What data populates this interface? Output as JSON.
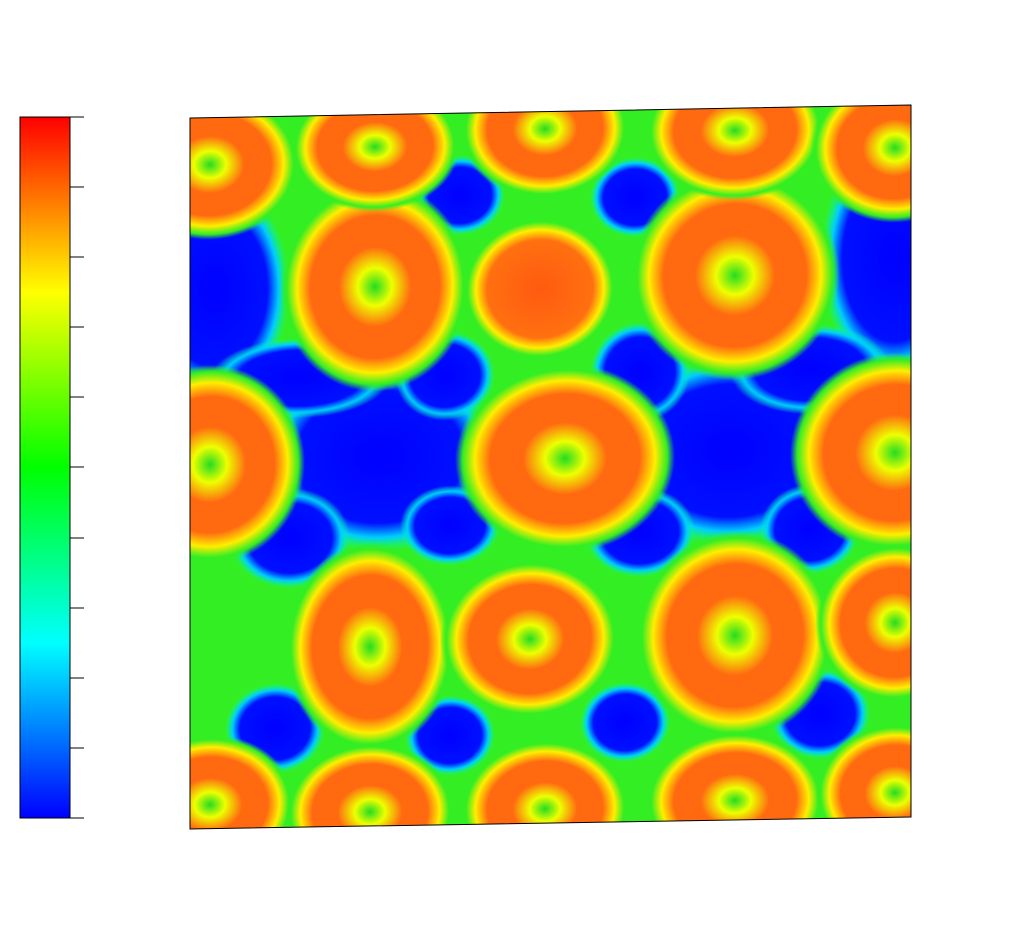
{
  "chart_data": {
    "type": "heatmap",
    "colormap": [
      "#0000ff",
      "#00ffff",
      "#00ff00",
      "#ffff00",
      "#ff0000"
    ]
  }
}
